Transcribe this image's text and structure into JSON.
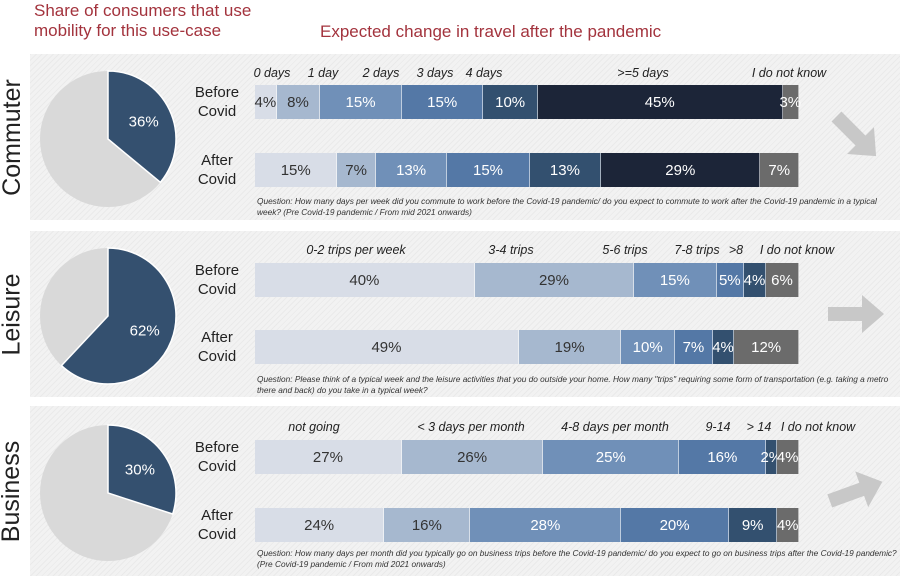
{
  "header": {
    "left_line1": "Share of consumers that use",
    "left_line2": "mobility for this use-case",
    "right": "Expected change in travel after the pandemic"
  },
  "colors": {
    "pie_share": "#34506f",
    "pie_rest": "#d9d9d9",
    "title": "#a3333d",
    "arrow": "#c8c8c8"
  },
  "chart_data": [
    {
      "type": "pie",
      "title": "Commuter",
      "values": [
        36,
        64
      ],
      "labels": [
        "36%",
        ""
      ],
      "arrow_direction": "down"
    },
    {
      "type": "bar",
      "stacked": true,
      "orientation": "horizontal",
      "title": "Commuter",
      "categories": [
        "0 days",
        "1 day",
        "2 days",
        "3 days",
        "4 days",
        ">=5 days",
        "I do not know"
      ],
      "category_colors": [
        "#d8dde7",
        "#a6b8cf",
        "#7090b8",
        "#5478a6",
        "#33506f",
        "#1c2538",
        "#6b6b6b"
      ],
      "rows": [
        {
          "label": [
            "Before",
            "Covid"
          ],
          "values": [
            4,
            8,
            15,
            15,
            10,
            45,
            3
          ]
        },
        {
          "label": [
            "After",
            "Covid"
          ],
          "values": [
            15,
            7,
            13,
            15,
            13,
            29,
            7
          ]
        }
      ],
      "question": "Question: How many days per week did you commute to work before the Covid-19 pandemic/ do you expect to commute to work after the Covid-19 pandemic in a typical week? (Pre Covid-19 pandemic / From mid 2021 onwards)"
    },
    {
      "type": "pie",
      "title": "Leisure",
      "values": [
        62,
        38
      ],
      "labels": [
        "62%",
        ""
      ],
      "arrow_direction": "right"
    },
    {
      "type": "bar",
      "stacked": true,
      "orientation": "horizontal",
      "title": "Leisure",
      "categories": [
        "0-2 trips per week",
        "3-4 trips",
        "5-6 trips",
        "7-8 trips",
        ">8",
        "I do not know"
      ],
      "category_colors": [
        "#d8dde7",
        "#a6b8cf",
        "#7090b8",
        "#5478a6",
        "#33506f",
        "#6b6b6b"
      ],
      "rows": [
        {
          "label": [
            "Before",
            "Covid"
          ],
          "values": [
            40,
            29,
            15,
            5,
            4,
            6
          ]
        },
        {
          "label": [
            "After",
            "Covid"
          ],
          "values": [
            49,
            19,
            10,
            7,
            4,
            12
          ]
        }
      ],
      "question": "Question: Please think of a typical week and the leisure activities that you do outside your home. How many \"trips\" requiring some form of transportation (e.g. taking a metro there and back) do you take in a typical week?"
    },
    {
      "type": "pie",
      "title": "Business",
      "values": [
        30,
        70
      ],
      "labels": [
        "30%",
        ""
      ],
      "arrow_direction": "up"
    },
    {
      "type": "bar",
      "stacked": true,
      "orientation": "horizontal",
      "title": "Business",
      "categories": [
        "not going",
        "< 3 days per month",
        "4-8 days per month",
        "9-14",
        "> 14",
        "I do not know"
      ],
      "category_colors": [
        "#d8dde7",
        "#a6b8cf",
        "#7090b8",
        "#5478a6",
        "#33506f",
        "#6b6b6b"
      ],
      "rows": [
        {
          "label": [
            "Before",
            "Covid"
          ],
          "values": [
            27,
            26,
            25,
            16,
            2,
            4
          ]
        },
        {
          "label": [
            "After",
            "Covid"
          ],
          "values": [
            24,
            16,
            28,
            20,
            9,
            4
          ]
        }
      ],
      "question": "Question: How many days per month did you typically go on business trips before the Covid-19 pandemic/ do you expect to go on business trips after the Covid-19 pandemic? (Pre Covid-19 pandemic / From mid 2021 onwards)"
    }
  ]
}
